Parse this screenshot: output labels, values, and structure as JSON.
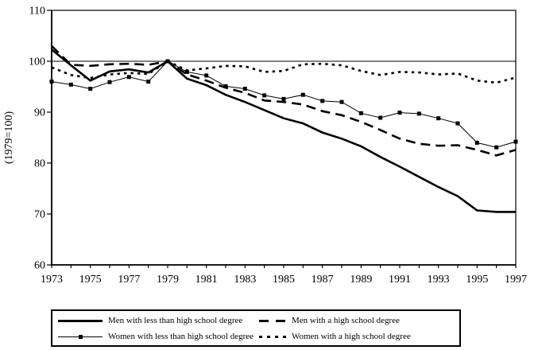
{
  "chart_data": {
    "type": "line",
    "title": "",
    "xlabel": "",
    "ylabel": "(1979=100)",
    "x": [
      1973,
      1974,
      1975,
      1976,
      1977,
      1978,
      1979,
      1980,
      1981,
      1982,
      1983,
      1984,
      1985,
      1986,
      1987,
      1988,
      1989,
      1990,
      1991,
      1992,
      1993,
      1994,
      1995,
      1996,
      1997
    ],
    "x_tick_labels": [
      1973,
      1975,
      1977,
      1979,
      1981,
      1983,
      1985,
      1987,
      1989,
      1991,
      1993,
      1995,
      1997
    ],
    "y_ticks": [
      60,
      70,
      80,
      90,
      100,
      110
    ],
    "ylim": [
      60,
      110
    ],
    "reference_line_y": 100,
    "grid": false,
    "legend_position": "bottom-box",
    "line_color": "#000000",
    "background_color": "#ffffff",
    "series": [
      {
        "name": "Men with less than high school degree",
        "style": "solid-thick",
        "values": [
          102.3,
          99.2,
          96.2,
          98.0,
          98.4,
          97.8,
          100,
          96.6,
          95.3,
          93.4,
          92.0,
          90.4,
          88.8,
          87.8,
          86.0,
          84.8,
          83.3,
          81.2,
          79.3,
          77.3,
          75.3,
          73.5,
          70.7,
          70.4,
          70.4
        ]
      },
      {
        "name": "Men with a high school degree",
        "style": "dashed",
        "values": [
          103.0,
          99.3,
          99.1,
          99.4,
          99.5,
          99.3,
          100,
          97.4,
          96.2,
          94.8,
          93.8,
          92.3,
          92.0,
          91.5,
          90.2,
          89.4,
          88.1,
          86.5,
          84.8,
          83.8,
          83.4,
          83.5,
          82.6,
          81.5,
          82.6
        ]
      },
      {
        "name": "Women with less than high school degree",
        "style": "solid-thin-square-markers",
        "values": [
          96.0,
          95.4,
          94.6,
          95.9,
          96.9,
          96.0,
          100,
          97.9,
          97.2,
          95.1,
          94.6,
          93.3,
          92.6,
          93.4,
          92.2,
          92.0,
          89.8,
          88.9,
          89.9,
          89.7,
          88.8,
          87.8,
          84.0,
          83.1,
          84.2
        ]
      },
      {
        "name": "Women with a high school degree",
        "style": "dotted",
        "values": [
          98.8,
          97.3,
          96.7,
          97.4,
          97.7,
          97.5,
          100,
          98.2,
          98.6,
          99.1,
          99.0,
          97.9,
          98.1,
          99.4,
          99.5,
          99.2,
          98.1,
          97.3,
          97.9,
          97.8,
          97.4,
          97.6,
          96.2,
          95.8,
          96.8
        ]
      }
    ]
  }
}
